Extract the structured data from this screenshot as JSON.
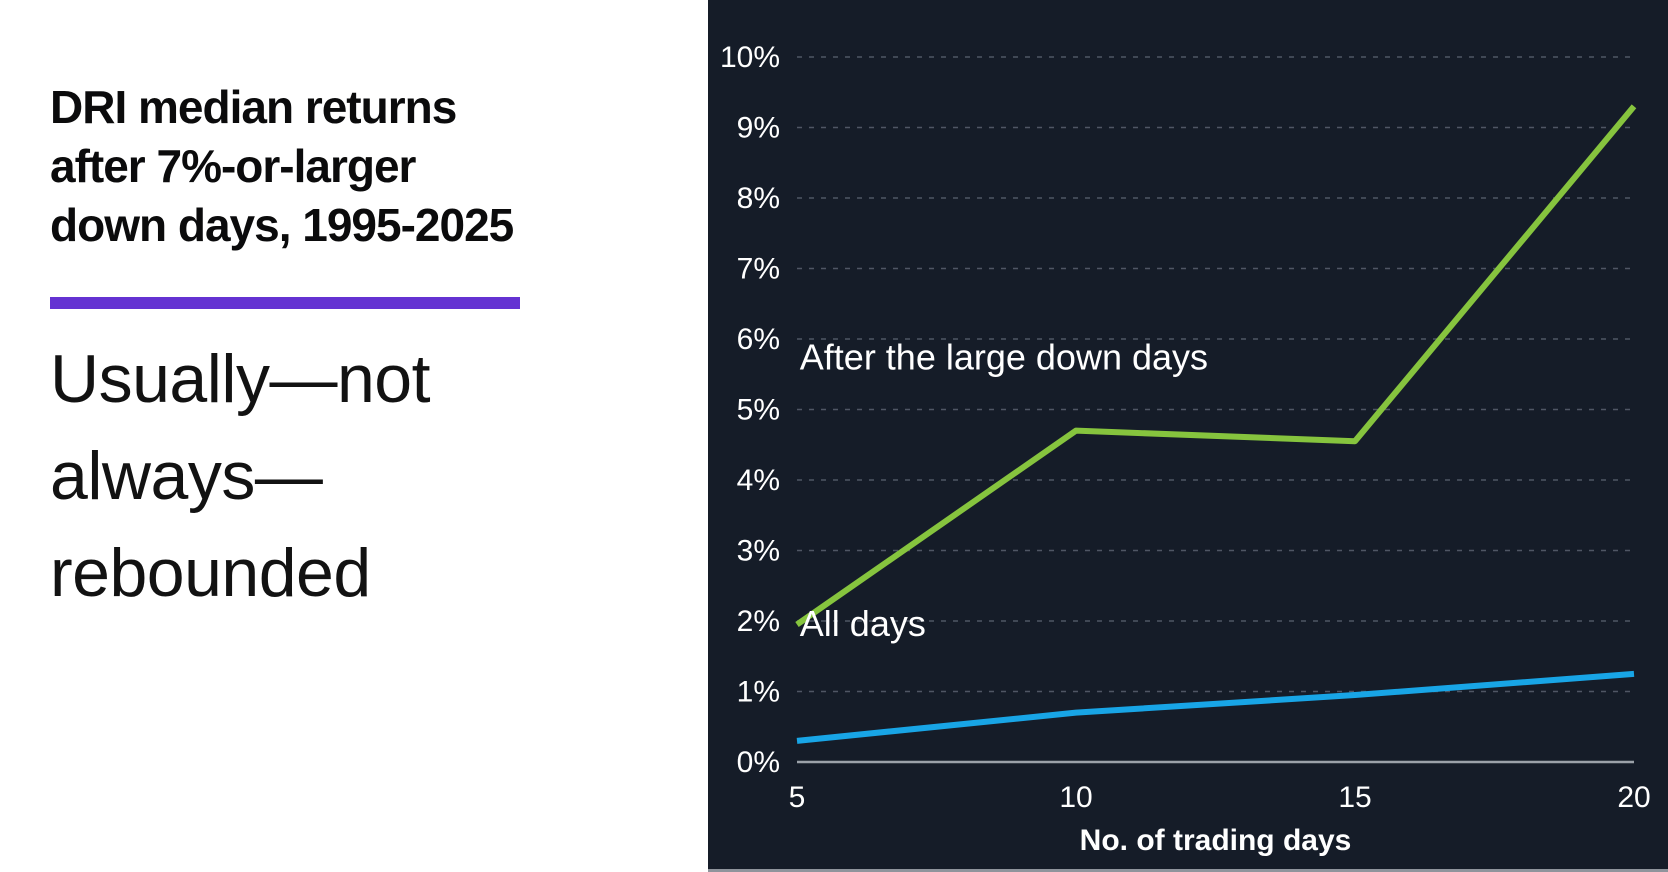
{
  "left_panel": {
    "title_lines": [
      "DRI median returns",
      "after 7%-or-larger",
      "down days, 1995-2025"
    ],
    "subtitle_lines": [
      "Usually—not",
      "always—",
      "rebounded"
    ],
    "accent_color": "#6432d2"
  },
  "chart_data": {
    "type": "line",
    "x": [
      5,
      10,
      15,
      20
    ],
    "x_ticks": [
      "5",
      "10",
      "15",
      "20"
    ],
    "y_ticks": [
      "0%",
      "1%",
      "2%",
      "3%",
      "4%",
      "5%",
      "6%",
      "7%",
      "8%",
      "9%",
      "10%"
    ],
    "xlim": [
      5,
      20
    ],
    "ylim": [
      0,
      10
    ],
    "xlabel": "No. of trading days",
    "series": [
      {
        "name": "After the large down days",
        "values": [
          1.95,
          4.7,
          4.55,
          9.3
        ],
        "color": "#86c43e"
      },
      {
        "name": "All days",
        "values": [
          0.3,
          0.7,
          0.95,
          1.25
        ],
        "color": "#18a5e6"
      }
    ],
    "annotations": [
      {
        "text": "After the large down days",
        "x": 5.05,
        "y": 5.57
      },
      {
        "text": "All days",
        "x": 5.05,
        "y": 1.79
      }
    ],
    "grid": "horizontal-dashed",
    "legend_position": "inline-annotations",
    "background": "#151c28",
    "gridline_color": "#6e7684",
    "zero_line_color": "#9ba1a9",
    "text_color": "#ffffff"
  }
}
